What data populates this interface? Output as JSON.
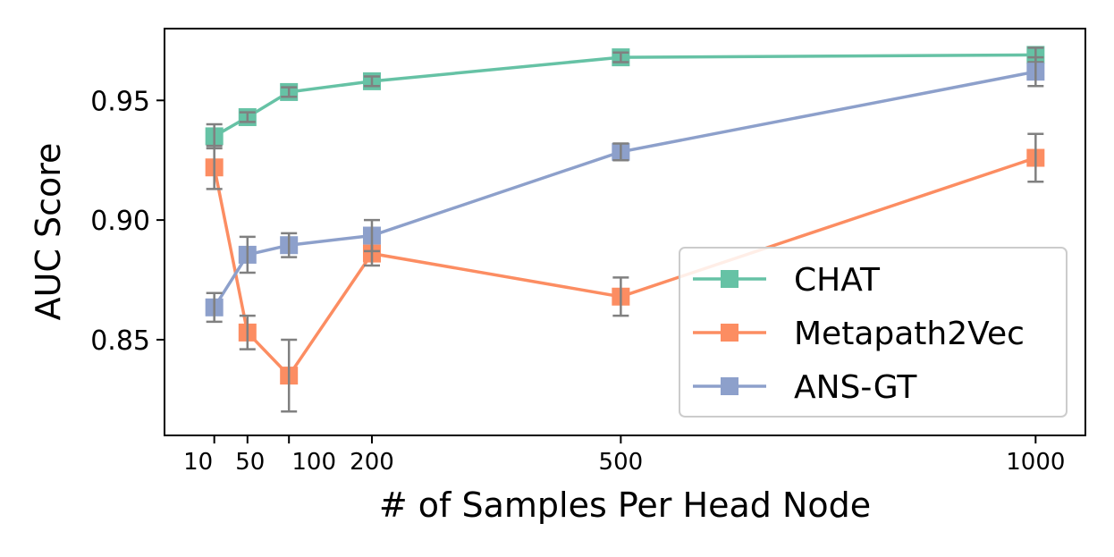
{
  "chart_data": {
    "type": "line",
    "title": "",
    "xlabel": "# of Samples Per Head Node",
    "ylabel": "AUC Score",
    "x": [
      10,
      50,
      100,
      200,
      500,
      1000
    ],
    "x_tick_labels": [
      "10",
      "50",
      "100",
      "200",
      "500",
      "1000"
    ],
    "xlim": [
      -50,
      1060
    ],
    "ylim": [
      0.81,
      0.98
    ],
    "y_ticks": [
      0.85,
      0.9,
      0.95
    ],
    "y_tick_labels": [
      "0.85",
      "0.90",
      "0.95"
    ],
    "grid": false,
    "legend_position": "lower-right",
    "series": [
      {
        "name": "CHAT",
        "color": "#66c2a5",
        "values": [
          0.935,
          0.943,
          0.9535,
          0.958,
          0.968,
          0.969
        ],
        "errors": [
          0.005,
          0.002,
          0.002,
          0.002,
          0.002,
          0.003
        ]
      },
      {
        "name": "Metapath2Vec",
        "color": "#fc8d62",
        "values": [
          0.922,
          0.853,
          0.835,
          0.886,
          0.868,
          0.926
        ],
        "errors": [
          0.009,
          0.007,
          0.015,
          0.005,
          0.008,
          0.01
        ]
      },
      {
        "name": "ANS-GT",
        "color": "#8da0cb",
        "values": [
          0.8635,
          0.8855,
          0.8895,
          0.8935,
          0.9285,
          0.962
        ],
        "errors": [
          0.006,
          0.0075,
          0.005,
          0.0065,
          0.0035,
          0.006
        ]
      }
    ],
    "errorbar_color": "#808080"
  }
}
